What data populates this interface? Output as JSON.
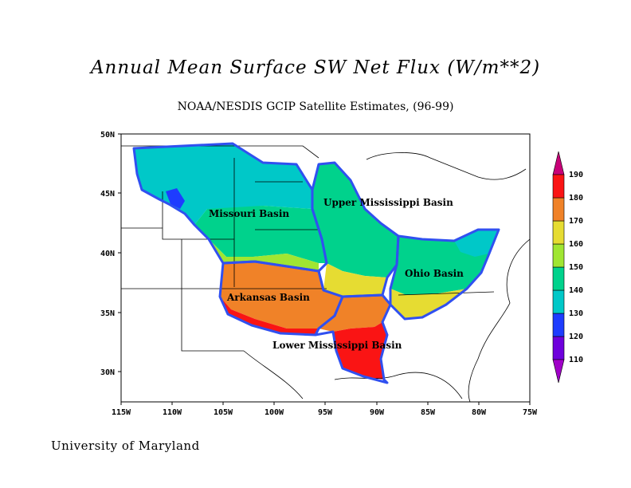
{
  "title": "Annual Mean Surface SW Net Flux (W/m**2)",
  "subtitle": "NOAA/NESDIS GCIP Satellite Estimates, (96-99)",
  "credit": "University of Maryland",
  "axes": {
    "lat_ticks": [
      "30N",
      "35N",
      "40N",
      "45N",
      "50N"
    ],
    "lon_ticks": [
      "115W",
      "110W",
      "105W",
      "100W",
      "95W",
      "90W",
      "85W",
      "80W",
      "75W"
    ]
  },
  "basins": [
    {
      "id": "missouri",
      "label": "Missouri Basin"
    },
    {
      "id": "upper-mississippi",
      "label": "Upper Mississippi Basin"
    },
    {
      "id": "ohio",
      "label": "Ohio Basin"
    },
    {
      "id": "arkansas",
      "label": "Arkansas Basin"
    },
    {
      "id": "lower-mississippi",
      "label": "Lower Mississippi Basin"
    }
  ],
  "colorbar": {
    "levels": [
      "110",
      "120",
      "130",
      "140",
      "150",
      "160",
      "170",
      "180",
      "190"
    ],
    "colors": [
      "#a000c8",
      "#6e00dc",
      "#1e3cff",
      "#00c8c8",
      "#00d28c",
      "#a0e632",
      "#e6dc32",
      "#f08228",
      "#fa1414",
      "#c80078"
    ]
  },
  "colors": {
    "basin_outline": "#3050f0",
    "map_lines": "#000000"
  },
  "chart_data": {
    "type": "heatmap",
    "title": "Annual Mean Surface SW Net Flux (W/m**2)",
    "subtitle": "NOAA/NESDIS GCIP Satellite Estimates, (96-99)",
    "xlim": [
      -115,
      -75
    ],
    "ylim": [
      27.5,
      50
    ],
    "zrange": [
      110,
      190
    ],
    "regions": [
      {
        "name": "Missouri Basin",
        "approx_values": [
          130,
          170
        ]
      },
      {
        "name": "Upper Mississippi Basin",
        "approx_values": [
          140,
          160
        ]
      },
      {
        "name": "Ohio Basin",
        "approx_values": [
          140,
          170
        ]
      },
      {
        "name": "Arkansas Basin",
        "approx_values": [
          170,
          190
        ]
      },
      {
        "name": "Lower Mississippi Basin",
        "approx_values": [
          170,
          190
        ]
      }
    ]
  }
}
